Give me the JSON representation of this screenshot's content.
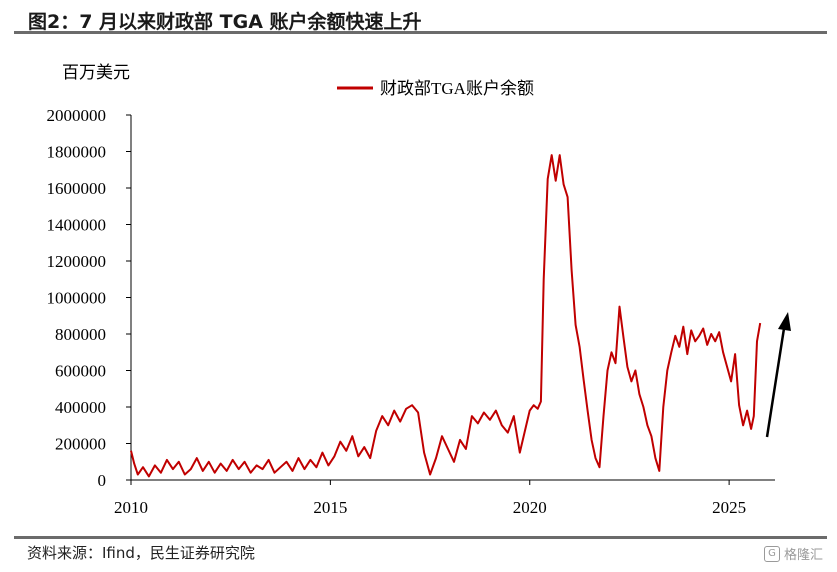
{
  "header": {
    "figure_title": "图2：7 月以来财政部 TGA 账户余额快速上升"
  },
  "footer": {
    "source": "资料来源：Ifind，民生证券研究院",
    "watermark": "格隆汇",
    "watermark_icon": "G-logo-icon"
  },
  "chart_data": {
    "type": "line",
    "unit_label": "百万美元",
    "xlabel": "",
    "ylabel": "",
    "ylim": [
      0,
      2000000
    ],
    "y_ticks": [
      0,
      200000,
      400000,
      600000,
      800000,
      1000000,
      1200000,
      1400000,
      1600000,
      1800000,
      2000000
    ],
    "xlim": [
      2010,
      2025.95
    ],
    "x_ticks": [
      2010,
      2015,
      2020,
      2025
    ],
    "grid": false,
    "legend_position": "top-center",
    "annotation": "upward arrow near end of series",
    "series": [
      {
        "name": "财政部TGA账户余额",
        "color": "#c00000",
        "x": [
          2010.0,
          2010.08,
          2010.17,
          2010.3,
          2010.45,
          2010.6,
          2010.75,
          2010.9,
          2011.05,
          2011.2,
          2011.35,
          2011.5,
          2011.65,
          2011.8,
          2011.95,
          2012.1,
          2012.25,
          2012.4,
          2012.55,
          2012.7,
          2012.85,
          2013.0,
          2013.15,
          2013.3,
          2013.45,
          2013.6,
          2013.75,
          2013.9,
          2014.05,
          2014.2,
          2014.35,
          2014.5,
          2014.65,
          2014.8,
          2014.95,
          2015.1,
          2015.25,
          2015.4,
          2015.55,
          2015.7,
          2015.85,
          2016.0,
          2016.15,
          2016.3,
          2016.45,
          2016.6,
          2016.75,
          2016.9,
          2017.05,
          2017.2,
          2017.35,
          2017.5,
          2017.65,
          2017.8,
          2017.95,
          2018.1,
          2018.25,
          2018.4,
          2018.55,
          2018.7,
          2018.85,
          2019.0,
          2019.15,
          2019.3,
          2019.45,
          2019.6,
          2019.75,
          2019.9,
          2020.0,
          2020.1,
          2020.2,
          2020.28,
          2020.35,
          2020.45,
          2020.55,
          2020.65,
          2020.75,
          2020.85,
          2020.95,
          2021.05,
          2021.15,
          2021.25,
          2021.35,
          2021.45,
          2021.55,
          2021.65,
          2021.75,
          2021.85,
          2021.95,
          2022.05,
          2022.15,
          2022.25,
          2022.35,
          2022.45,
          2022.55,
          2022.65,
          2022.75,
          2022.85,
          2022.95,
          2023.05,
          2023.15,
          2023.25,
          2023.35,
          2023.45,
          2023.55,
          2023.65,
          2023.75,
          2023.85,
          2023.95,
          2024.05,
          2024.15,
          2024.25,
          2024.35,
          2024.45,
          2024.55,
          2024.65,
          2024.75,
          2024.85,
          2024.95,
          2025.05,
          2025.15,
          2025.25,
          2025.35,
          2025.45,
          2025.55,
          2025.62,
          2025.7,
          2025.78
        ],
        "values": [
          160000,
          90000,
          30000,
          70000,
          20000,
          80000,
          40000,
          110000,
          60000,
          100000,
          30000,
          60000,
          120000,
          50000,
          100000,
          40000,
          90000,
          50000,
          110000,
          60000,
          100000,
          40000,
          80000,
          60000,
          110000,
          40000,
          70000,
          100000,
          50000,
          120000,
          60000,
          110000,
          70000,
          150000,
          80000,
          130000,
          210000,
          160000,
          240000,
          130000,
          180000,
          120000,
          270000,
          350000,
          300000,
          380000,
          320000,
          390000,
          410000,
          370000,
          150000,
          30000,
          120000,
          240000,
          170000,
          100000,
          220000,
          170000,
          350000,
          310000,
          370000,
          330000,
          380000,
          300000,
          260000,
          350000,
          150000,
          290000,
          380000,
          410000,
          390000,
          430000,
          1100000,
          1650000,
          1780000,
          1640000,
          1780000,
          1620000,
          1550000,
          1150000,
          850000,
          730000,
          550000,
          380000,
          220000,
          120000,
          70000,
          350000,
          600000,
          700000,
          640000,
          950000,
          780000,
          620000,
          540000,
          600000,
          470000,
          400000,
          300000,
          240000,
          120000,
          50000,
          400000,
          600000,
          700000,
          790000,
          730000,
          840000,
          690000,
          820000,
          760000,
          790000,
          830000,
          740000,
          800000,
          760000,
          810000,
          700000,
          620000,
          540000,
          690000,
          410000,
          300000,
          380000,
          280000,
          350000,
          760000,
          860000
        ]
      }
    ]
  }
}
